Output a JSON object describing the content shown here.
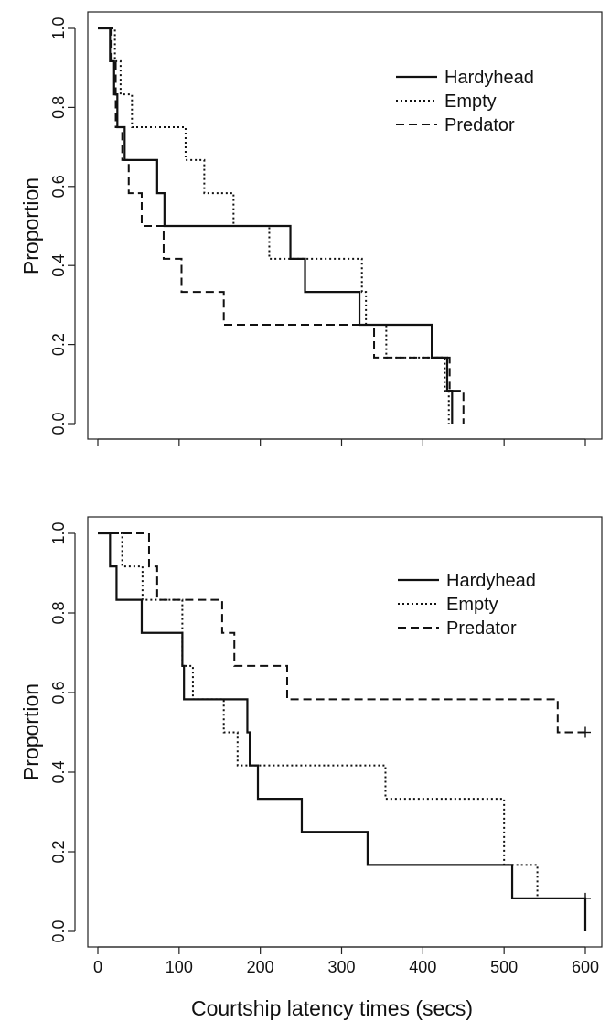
{
  "chart_data": [
    {
      "type": "line",
      "subtype": "step (Kaplan-Meier survival curves)",
      "xlabel": "",
      "ylabel": "Proportion",
      "xlim": [
        0,
        600
      ],
      "ylim": [
        0,
        1
      ],
      "x_ticks": [
        0,
        100,
        200,
        300,
        400,
        500,
        600
      ],
      "x_tick_labels_shown": false,
      "y_ticks": [
        0.0,
        0.2,
        0.4,
        0.6,
        0.8,
        1.0
      ],
      "y_tick_labels": [
        "0.0",
        "0.2",
        "0.4",
        "0.6",
        "0.8",
        "1.0"
      ],
      "grid": false,
      "legend_position": "top-right",
      "series": [
        {
          "name": "Hardyhead",
          "style": "solid",
          "x": [
            0,
            15,
            20,
            24,
            33,
            73,
            82,
            237,
            255,
            322,
            411,
            430,
            436
          ],
          "y": [
            1.0,
            0.917,
            0.833,
            0.75,
            0.667,
            0.583,
            0.5,
            0.417,
            0.333,
            0.25,
            0.167,
            0.083,
            0.0
          ]
        },
        {
          "name": "Empty",
          "style": "dotted",
          "x": [
            0,
            21,
            28,
            42,
            108,
            131,
            167,
            211,
            325,
            330,
            355,
            427,
            432
          ],
          "y": [
            1.0,
            0.917,
            0.833,
            0.75,
            0.667,
            0.583,
            0.5,
            0.417,
            0.333,
            0.25,
            0.167,
            0.083,
            0.0
          ]
        },
        {
          "name": "Predator",
          "style": "dashed",
          "x": [
            0,
            17,
            22,
            30,
            38,
            54,
            81,
            103,
            155,
            340,
            433,
            450
          ],
          "y": [
            1.0,
            0.917,
            0.75,
            0.667,
            0.583,
            0.5,
            0.417,
            0.333,
            0.25,
            0.167,
            0.083,
            0.0
          ]
        }
      ]
    },
    {
      "type": "line",
      "subtype": "step (Kaplan-Meier survival curves)",
      "xlabel": "Courtship latency times (secs)",
      "ylabel": "Proportion",
      "xlim": [
        0,
        600
      ],
      "ylim": [
        0,
        1
      ],
      "x_ticks": [
        0,
        100,
        200,
        300,
        400,
        500,
        600
      ],
      "x_tick_labels": [
        "0",
        "100",
        "200",
        "300",
        "400",
        "500",
        "600"
      ],
      "y_ticks": [
        0.0,
        0.2,
        0.4,
        0.6,
        0.8,
        1.0
      ],
      "y_tick_labels": [
        "0.0",
        "0.2",
        "0.4",
        "0.6",
        "0.8",
        "1.0"
      ],
      "grid": false,
      "legend_position": "top-right",
      "series": [
        {
          "name": "Hardyhead",
          "style": "solid",
          "x": [
            0,
            15,
            23,
            54,
            104,
            106,
            184,
            187,
            197,
            251,
            332,
            510,
            600
          ],
          "y": [
            1.0,
            0.917,
            0.833,
            0.75,
            0.667,
            0.583,
            0.5,
            0.417,
            0.333,
            0.25,
            0.167,
            0.083,
            0.0
          ],
          "censored": [
            {
              "x": 600,
              "y": 0.083
            }
          ]
        },
        {
          "name": "Empty",
          "style": "dotted",
          "x": [
            0,
            30,
            55,
            104,
            117,
            155,
            172,
            354,
            500,
            541
          ],
          "y": [
            1.0,
            0.917,
            0.833,
            0.667,
            0.583,
            0.5,
            0.417,
            0.333,
            0.167,
            0.083
          ]
        },
        {
          "name": "Predator",
          "style": "dashed",
          "x": [
            0,
            63,
            73,
            153,
            168,
            233,
            566
          ],
          "y": [
            1.0,
            0.917,
            0.833,
            0.75,
            0.667,
            0.583,
            0.5
          ],
          "censored": [
            {
              "x": 600,
              "y": 0.5
            }
          ]
        }
      ]
    }
  ]
}
